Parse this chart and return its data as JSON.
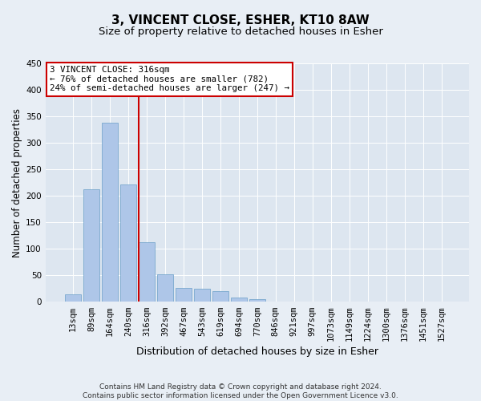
{
  "title": "3, VINCENT CLOSE, ESHER, KT10 8AW",
  "subtitle": "Size of property relative to detached houses in Esher",
  "xlabel": "Distribution of detached houses by size in Esher",
  "ylabel": "Number of detached properties",
  "categories": [
    "13sqm",
    "89sqm",
    "164sqm",
    "240sqm",
    "316sqm",
    "392sqm",
    "467sqm",
    "543sqm",
    "619sqm",
    "694sqm",
    "770sqm",
    "846sqm",
    "921sqm",
    "997sqm",
    "1073sqm",
    "1149sqm",
    "1224sqm",
    "1300sqm",
    "1376sqm",
    "1451sqm",
    "1527sqm"
  ],
  "values": [
    15,
    213,
    338,
    221,
    112,
    52,
    26,
    25,
    20,
    8,
    5,
    0,
    0,
    0,
    0,
    0,
    1,
    0,
    0,
    0,
    1
  ],
  "bar_color": "#aec6e8",
  "bar_edge_color": "#6a9fc8",
  "vline_index": 4,
  "vline_color": "#cc0000",
  "annotation_line1": "3 VINCENT CLOSE: 316sqm",
  "annotation_line2": "← 76% of detached houses are smaller (782)",
  "annotation_line3": "24% of semi-detached houses are larger (247) →",
  "annotation_box_color": "#ffffff",
  "annotation_box_edge_color": "#cc0000",
  "bg_color": "#e8eef5",
  "plot_bg_color": "#dde6f0",
  "ylim": [
    0,
    450
  ],
  "yticks": [
    0,
    50,
    100,
    150,
    200,
    250,
    300,
    350,
    400,
    450
  ],
  "title_fontsize": 11,
  "subtitle_fontsize": 9.5,
  "xlabel_fontsize": 9,
  "ylabel_fontsize": 8.5,
  "tick_fontsize": 7.5,
  "footnote": "Contains HM Land Registry data © Crown copyright and database right 2024.\nContains public sector information licensed under the Open Government Licence v3.0.",
  "footnote_fontsize": 6.5
}
